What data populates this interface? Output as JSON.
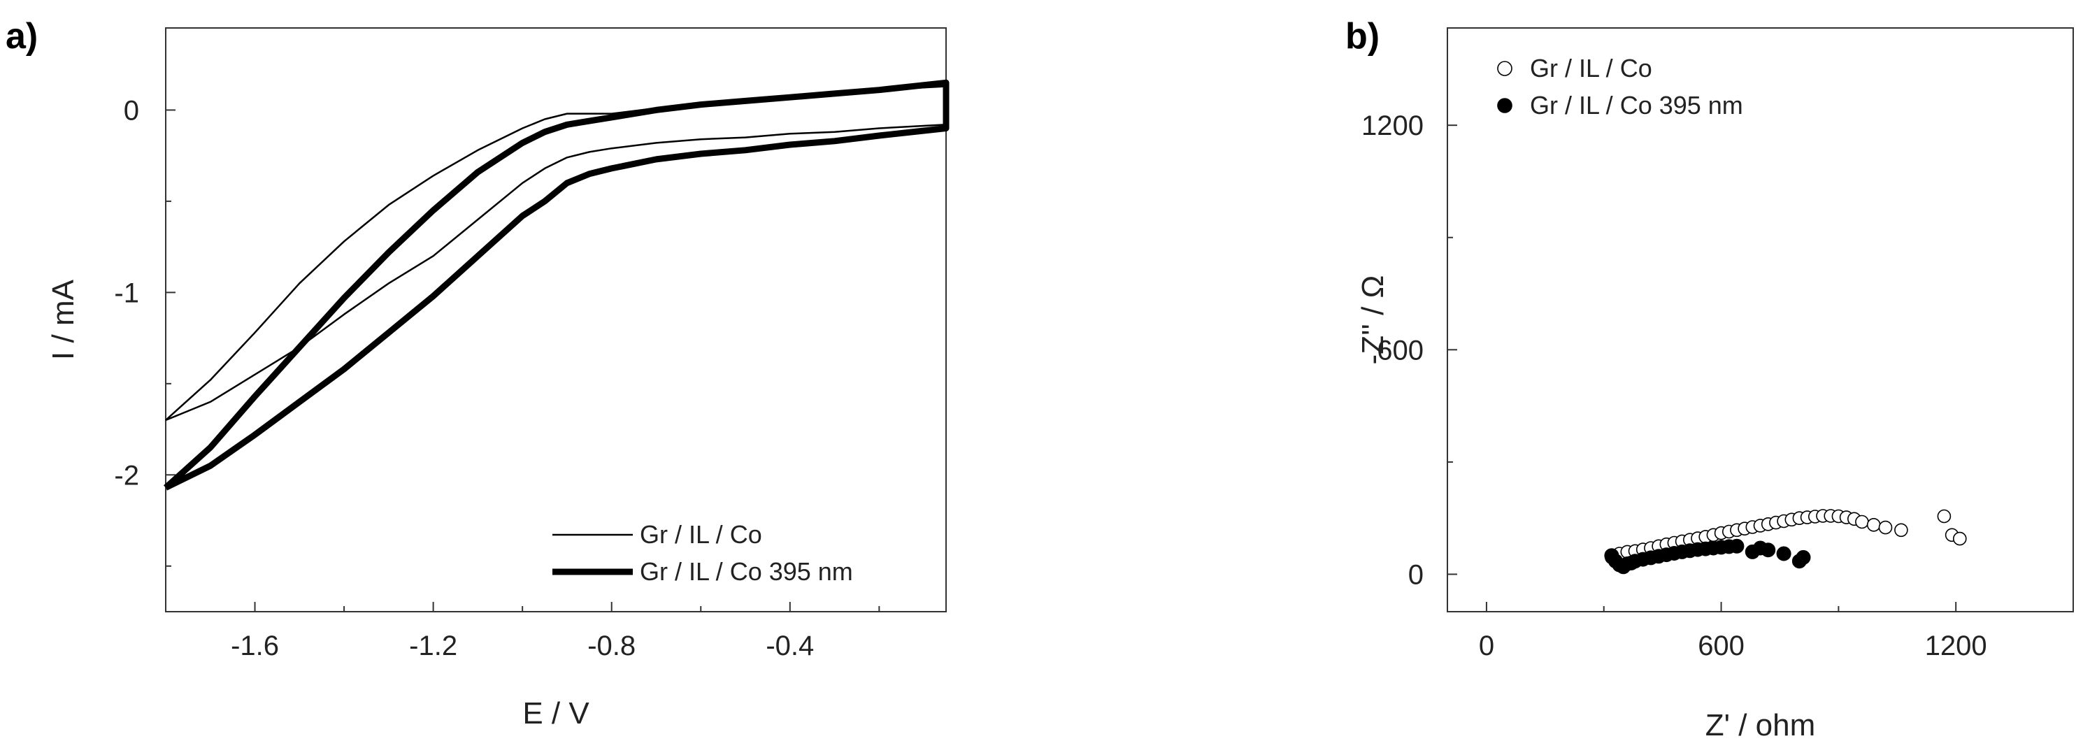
{
  "panels": {
    "a_label": "a)",
    "b_label": "b)"
  },
  "chart_data": [
    {
      "type": "line",
      "panel": "a)",
      "xlabel": "E / V",
      "ylabel": "I / mA",
      "xlim": [
        -1.8,
        -0.05
      ],
      "ylim": [
        -2.75,
        0.45
      ],
      "xticks": [
        -1.6,
        -1.2,
        -0.8,
        -0.4
      ],
      "xtick_labels": [
        "-1.6",
        "-1.2",
        "-0.8",
        "-0.4"
      ],
      "yticks": [
        0,
        -1,
        -2
      ],
      "ytick_labels": [
        "0",
        "-1",
        "-2"
      ],
      "legend_position": "bottom-right",
      "grid": false,
      "series": [
        {
          "name": "Gr / IL / Co",
          "style": "thin",
          "x": [
            -1.8,
            -1.7,
            -1.6,
            -1.5,
            -1.4,
            -1.3,
            -1.2,
            -1.1,
            -1.0,
            -0.95,
            -0.9,
            -0.85,
            -0.8,
            -0.7,
            -0.6,
            -0.5,
            -0.4,
            -0.3,
            -0.2,
            -0.05,
            -0.05,
            -0.2,
            -0.3,
            -0.4,
            -0.5,
            -0.6,
            -0.7,
            -0.8,
            -0.85,
            -0.9,
            -0.95,
            -1.0,
            -1.1,
            -1.2,
            -1.3,
            -1.4,
            -1.5,
            -1.6,
            -1.7,
            -1.8
          ],
          "y": [
            -1.7,
            -1.48,
            -1.22,
            -0.95,
            -0.72,
            -0.52,
            -0.36,
            -0.22,
            -0.1,
            -0.05,
            -0.02,
            -0.02,
            -0.02,
            0.01,
            0.03,
            0.05,
            0.07,
            0.09,
            0.11,
            0.13,
            -0.08,
            -0.1,
            -0.12,
            -0.13,
            -0.15,
            -0.16,
            -0.18,
            -0.21,
            -0.23,
            -0.26,
            -0.32,
            -0.4,
            -0.6,
            -0.8,
            -0.95,
            -1.12,
            -1.3,
            -1.45,
            -1.6,
            -1.7
          ]
        },
        {
          "name": "Gr / IL / Co 395 nm",
          "style": "thick",
          "x": [
            -1.8,
            -1.7,
            -1.6,
            -1.5,
            -1.4,
            -1.3,
            -1.2,
            -1.1,
            -1.0,
            -0.95,
            -0.9,
            -0.85,
            -0.8,
            -0.7,
            -0.6,
            -0.5,
            -0.4,
            -0.3,
            -0.2,
            -0.05,
            -0.05,
            -0.2,
            -0.3,
            -0.4,
            -0.5,
            -0.6,
            -0.7,
            -0.8,
            -0.85,
            -0.9,
            -0.95,
            -1.0,
            -1.1,
            -1.2,
            -1.3,
            -1.4,
            -1.5,
            -1.6,
            -1.7,
            -1.8
          ],
          "y": [
            -2.07,
            -1.85,
            -1.57,
            -1.3,
            -1.03,
            -0.78,
            -0.55,
            -0.34,
            -0.18,
            -0.12,
            -0.08,
            -0.06,
            -0.04,
            0.0,
            0.03,
            0.05,
            0.07,
            0.09,
            0.11,
            0.15,
            -0.1,
            -0.14,
            -0.17,
            -0.19,
            -0.22,
            -0.24,
            -0.27,
            -0.32,
            -0.35,
            -0.4,
            -0.5,
            -0.58,
            -0.8,
            -1.02,
            -1.22,
            -1.42,
            -1.6,
            -1.78,
            -1.95,
            -2.07
          ]
        }
      ]
    },
    {
      "type": "scatter",
      "panel": "b)",
      "xlabel": "Z' / ohm",
      "ylabel": "-Z'' / Ω",
      "xlim": [
        -100,
        1500
      ],
      "ylim": [
        -100,
        1460
      ],
      "xticks": [
        0,
        600,
        1200
      ],
      "xtick_labels": [
        "0",
        "600",
        "1200"
      ],
      "yticks": [
        0,
        600,
        1200
      ],
      "ytick_labels": [
        "0",
        "600",
        "1200"
      ],
      "legend_position": "top-left",
      "grid": false,
      "series": [
        {
          "name": "Gr / IL / Co",
          "marker": "open-circle",
          "x": [
            320,
            340,
            360,
            380,
            400,
            420,
            440,
            460,
            480,
            500,
            520,
            540,
            560,
            580,
            600,
            620,
            640,
            660,
            680,
            700,
            720,
            740,
            760,
            780,
            800,
            820,
            840,
            860,
            880,
            900,
            920,
            940,
            960,
            990,
            1020,
            1060,
            1170,
            1190,
            1210
          ],
          "y": [
            45,
            55,
            60,
            62,
            66,
            70,
            75,
            80,
            84,
            88,
            92,
            96,
            100,
            105,
            110,
            114,
            118,
            122,
            126,
            130,
            134,
            138,
            142,
            146,
            150,
            152,
            154,
            156,
            156,
            155,
            152,
            148,
            140,
            132,
            125,
            118,
            155,
            105,
            95
          ]
        },
        {
          "name": "Gr / IL / Co 395 nm",
          "marker": "filled-circle",
          "x": [
            320,
            330,
            340,
            350,
            360,
            370,
            380,
            400,
            420,
            440,
            460,
            480,
            500,
            520,
            540,
            560,
            580,
            600,
            620,
            640,
            680,
            700,
            720,
            760,
            800,
            810
          ],
          "y": [
            50,
            35,
            25,
            20,
            28,
            30,
            35,
            40,
            44,
            48,
            52,
            56,
            60,
            63,
            66,
            68,
            70,
            72,
            74,
            75,
            60,
            70,
            65,
            55,
            35,
            45
          ]
        }
      ]
    }
  ]
}
